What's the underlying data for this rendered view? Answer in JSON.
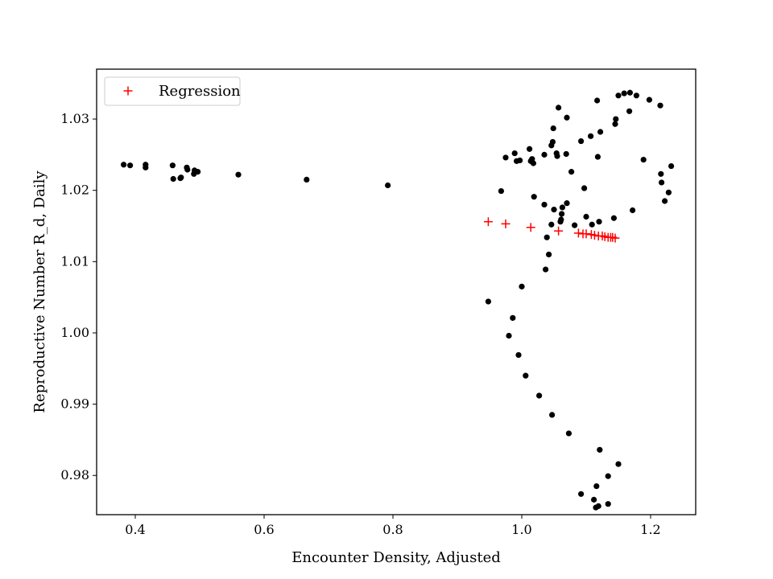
{
  "chart_data": {
    "type": "scatter",
    "title": "",
    "xlabel": "Encounter Density, Adjusted",
    "ylabel": "Reproductive Number R_d, Daily",
    "xlim": [
      0.34,
      1.27
    ],
    "ylim": [
      0.9745,
      1.037
    ],
    "xticks": [
      0.4,
      0.6,
      0.8,
      1.0,
      1.2
    ],
    "xtick_labels": [
      "0.4",
      "0.6",
      "0.8",
      "1.0",
      "1.2"
    ],
    "yticks": [
      0.98,
      0.99,
      1.0,
      1.01,
      1.02,
      1.03
    ],
    "ytick_labels": [
      "0.98",
      "0.99",
      "1.00",
      "1.01",
      "1.02",
      "1.03"
    ],
    "grid": false,
    "legend_position": "top-left",
    "colors": {
      "observed": "#000000",
      "regression": "#ff0000",
      "frame": "#000000"
    },
    "series": [
      {
        "name": "",
        "marker": "dot",
        "points": [
          [
            0.382,
            1.0236
          ],
          [
            0.392,
            1.0235
          ],
          [
            0.416,
            1.0236
          ],
          [
            0.416,
            1.0232
          ],
          [
            0.458,
            1.0235
          ],
          [
            0.459,
            1.0216
          ],
          [
            0.47,
            1.0217
          ],
          [
            0.471,
            1.0218
          ],
          [
            0.48,
            1.0232
          ],
          [
            0.481,
            1.0229
          ],
          [
            0.491,
            1.0223
          ],
          [
            0.492,
            1.0228
          ],
          [
            0.497,
            1.0226
          ],
          [
            0.56,
            1.0222
          ],
          [
            0.666,
            1.0215
          ],
          [
            0.792,
            1.0207
          ],
          [
            0.948,
            1.0044
          ],
          [
            0.968,
            1.0199
          ],
          [
            0.975,
            1.0246
          ],
          [
            0.98,
            0.9996
          ],
          [
            0.986,
            1.0021
          ],
          [
            0.989,
            1.0252
          ],
          [
            0.992,
            1.0241
          ],
          [
            0.995,
            0.9969
          ],
          [
            0.997,
            1.0242
          ],
          [
            1.0,
            1.0065
          ],
          [
            1.006,
            0.994
          ],
          [
            1.012,
            1.0258
          ],
          [
            1.014,
            1.0241
          ],
          [
            1.016,
            1.0244
          ],
          [
            1.018,
            1.0238
          ],
          [
            1.019,
            1.0191
          ],
          [
            1.027,
            0.9912
          ],
          [
            1.035,
            1.018
          ],
          [
            1.035,
            1.025
          ],
          [
            1.037,
            1.0089
          ],
          [
            1.039,
            1.0134
          ],
          [
            1.042,
            1.011
          ],
          [
            1.046,
            1.0152
          ],
          [
            1.046,
            1.0263
          ],
          [
            1.047,
            0.9885
          ],
          [
            1.048,
            1.0268
          ],
          [
            1.049,
            1.0287
          ],
          [
            1.05,
            1.0173
          ],
          [
            1.054,
            1.0252
          ],
          [
            1.055,
            1.0248
          ],
          [
            1.057,
            1.0316
          ],
          [
            1.06,
            1.0156
          ],
          [
            1.061,
            1.0159
          ],
          [
            1.062,
            1.0167
          ],
          [
            1.063,
            1.0176
          ],
          [
            1.069,
            1.0251
          ],
          [
            1.07,
            1.0302
          ],
          [
            1.07,
            1.0182
          ],
          [
            1.073,
            0.9859
          ],
          [
            1.077,
            1.0226
          ],
          [
            1.082,
            1.0151
          ],
          [
            1.092,
            0.9774
          ],
          [
            1.092,
            1.0269
          ],
          [
            1.097,
            1.0203
          ],
          [
            1.1,
            1.0163
          ],
          [
            1.107,
            1.0276
          ],
          [
            1.109,
            1.0152
          ],
          [
            1.112,
            0.9766
          ],
          [
            1.115,
            0.9755
          ],
          [
            1.116,
            0.9785
          ],
          [
            1.117,
            1.0326
          ],
          [
            1.118,
            1.0247
          ],
          [
            1.119,
            0.9757
          ],
          [
            1.12,
            1.0156
          ],
          [
            1.121,
            0.9836
          ],
          [
            1.122,
            1.0282
          ],
          [
            1.134,
            0.9799
          ],
          [
            1.134,
            0.976
          ],
          [
            1.143,
            1.0161
          ],
          [
            1.145,
            1.0293
          ],
          [
            1.146,
            1.03
          ],
          [
            1.15,
            0.9816
          ],
          [
            1.15,
            1.0333
          ],
          [
            1.159,
            1.0336
          ],
          [
            1.167,
            1.0311
          ],
          [
            1.168,
            1.0337
          ],
          [
            1.172,
            1.0172
          ],
          [
            1.178,
            1.0333
          ],
          [
            1.189,
            1.0243
          ],
          [
            1.198,
            1.0327
          ],
          [
            1.215,
            1.0319
          ],
          [
            1.216,
            1.0223
          ],
          [
            1.217,
            1.0211
          ],
          [
            1.222,
            1.0185
          ],
          [
            1.228,
            1.0197
          ],
          [
            1.232,
            1.0234
          ]
        ]
      },
      {
        "name": "Regression",
        "marker": "plus",
        "points": [
          [
            0.948,
            1.0156
          ],
          [
            0.975,
            1.0153
          ],
          [
            1.014,
            1.0148
          ],
          [
            1.057,
            1.0143
          ],
          [
            1.088,
            1.014
          ],
          [
            1.095,
            1.0139
          ],
          [
            1.1,
            1.0139
          ],
          [
            1.108,
            1.0138
          ],
          [
            1.113,
            1.0137
          ],
          [
            1.119,
            1.0136
          ],
          [
            1.125,
            1.0136
          ],
          [
            1.129,
            1.0135
          ],
          [
            1.134,
            1.0134
          ],
          [
            1.138,
            1.0134
          ],
          [
            1.141,
            1.0134
          ],
          [
            1.145,
            1.0133
          ]
        ]
      }
    ]
  }
}
